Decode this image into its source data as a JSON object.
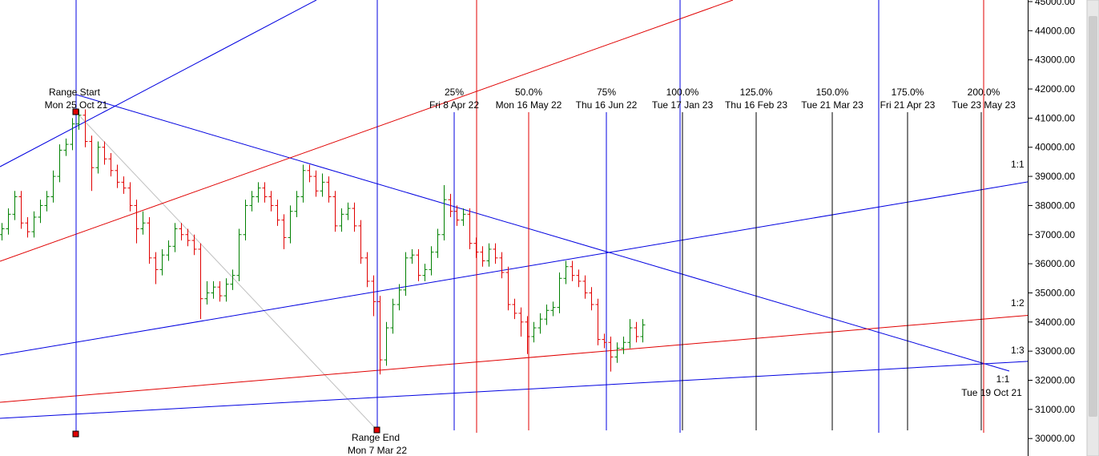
{
  "chart_data": {
    "type": "ohlc",
    "up_color": "#008000",
    "down_color": "#e00000",
    "ohlc": [
      [
        37000,
        37400,
        36800,
        37200
      ],
      [
        37200,
        37900,
        37000,
        37700
      ],
      [
        37700,
        38500,
        37500,
        38300
      ],
      [
        38300,
        38500,
        37200,
        37400
      ],
      [
        37400,
        37600,
        36900,
        37100
      ],
      [
        37100,
        37800,
        36900,
        37600
      ],
      [
        37600,
        38200,
        37400,
        38000
      ],
      [
        38000,
        38500,
        37800,
        38300
      ],
      [
        38300,
        39200,
        38100,
        39000
      ],
      [
        39000,
        40100,
        38800,
        39900
      ],
      [
        39900,
        40300,
        39700,
        40100
      ],
      [
        40100,
        41000,
        39900,
        40800
      ],
      [
        40800,
        41300,
        40600,
        41100
      ],
      [
        41100,
        41300,
        40000,
        40200
      ],
      [
        40200,
        40400,
        38500,
        39300
      ],
      [
        39300,
        40200,
        39100,
        40000
      ],
      [
        40000,
        40200,
        39400,
        39600
      ],
      [
        39600,
        39800,
        39000,
        39200
      ],
      [
        39200,
        39400,
        38600,
        38800
      ],
      [
        38800,
        39000,
        38400,
        38600
      ],
      [
        38600,
        38800,
        37800,
        38000
      ],
      [
        38000,
        38200,
        36700,
        37200
      ],
      [
        37200,
        37800,
        37000,
        37400
      ],
      [
        37400,
        37600,
        36000,
        36200
      ],
      [
        36200,
        36400,
        35300,
        35800
      ],
      [
        35800,
        36500,
        35600,
        36300
      ],
      [
        36300,
        36800,
        36100,
        36600
      ],
      [
        36600,
        37400,
        36400,
        37200
      ],
      [
        37200,
        37400,
        36800,
        37000
      ],
      [
        37000,
        37200,
        36600,
        36800
      ],
      [
        36800,
        37000,
        36300,
        36500
      ],
      [
        36500,
        36700,
        34100,
        34800
      ],
      [
        34800,
        35400,
        34600,
        35000
      ],
      [
        35000,
        35400,
        34800,
        35200
      ],
      [
        35200,
        35400,
        34700,
        34900
      ],
      [
        34900,
        35500,
        34700,
        35300
      ],
      [
        35300,
        35800,
        35100,
        35600
      ],
      [
        35600,
        37200,
        35400,
        37000
      ],
      [
        37000,
        38200,
        36800,
        38000
      ],
      [
        38000,
        38500,
        37800,
        38300
      ],
      [
        38300,
        38800,
        38100,
        38600
      ],
      [
        38600,
        38800,
        38100,
        38300
      ],
      [
        38300,
        38500,
        37800,
        38000
      ],
      [
        38000,
        38200,
        37300,
        37500
      ],
      [
        37500,
        37700,
        36500,
        36900
      ],
      [
        36900,
        38000,
        36700,
        37800
      ],
      [
        37800,
        38500,
        37600,
        38300
      ],
      [
        38300,
        39400,
        38100,
        39200
      ],
      [
        39200,
        39400,
        38800,
        39000
      ],
      [
        39000,
        39200,
        38300,
        38500
      ],
      [
        38500,
        39100,
        38300,
        38800
      ],
      [
        38800,
        39000,
        38100,
        38300
      ],
      [
        38300,
        38500,
        37100,
        37300
      ],
      [
        37300,
        37900,
        37100,
        37700
      ],
      [
        37700,
        38100,
        37500,
        37900
      ],
      [
        37900,
        38100,
        37100,
        37300
      ],
      [
        37300,
        37500,
        36000,
        36200
      ],
      [
        36200,
        36400,
        35200,
        35400
      ],
      [
        35400,
        35600,
        34200,
        34700
      ],
      [
        34700,
        34900,
        32200,
        32700
      ],
      [
        32700,
        34000,
        32500,
        33800
      ],
      [
        33800,
        34800,
        33600,
        34600
      ],
      [
        34600,
        35300,
        34400,
        35100
      ],
      [
        35100,
        36400,
        34900,
        36200
      ],
      [
        36200,
        36500,
        36000,
        36300
      ],
      [
        36300,
        36500,
        35400,
        35600
      ],
      [
        35600,
        36000,
        35400,
        35800
      ],
      [
        35800,
        36600,
        35600,
        36400
      ],
      [
        36400,
        37200,
        36200,
        37000
      ],
      [
        37000,
        38700,
        36800,
        38200
      ],
      [
        38200,
        38400,
        37600,
        37800
      ],
      [
        37800,
        38000,
        37300,
        37500
      ],
      [
        37500,
        37900,
        37300,
        37700
      ],
      [
        37700,
        37900,
        36500,
        36700
      ],
      [
        36700,
        36900,
        36200,
        36400
      ],
      [
        36400,
        36600,
        35900,
        36100
      ],
      [
        36100,
        36700,
        35900,
        36500
      ],
      [
        36500,
        36700,
        36000,
        36200
      ],
      [
        36200,
        36400,
        35500,
        35700
      ],
      [
        35700,
        35900,
        34400,
        34600
      ],
      [
        34600,
        34800,
        34100,
        34300
      ],
      [
        34300,
        34500,
        33500,
        34000
      ],
      [
        34000,
        34200,
        32900,
        33500
      ],
      [
        33500,
        34000,
        33300,
        33800
      ],
      [
        33800,
        34300,
        33600,
        34100
      ],
      [
        34100,
        34600,
        33900,
        34400
      ],
      [
        34400,
        34700,
        34200,
        34500
      ],
      [
        34500,
        35700,
        34300,
        35500
      ],
      [
        35500,
        36100,
        35300,
        35900
      ],
      [
        35900,
        36100,
        35400,
        35600
      ],
      [
        35600,
        35800,
        35200,
        35400
      ],
      [
        35400,
        35600,
        34800,
        35000
      ],
      [
        35000,
        35200,
        34400,
        34600
      ],
      [
        34600,
        34800,
        33200,
        33400
      ],
      [
        33400,
        33600,
        33100,
        33300
      ],
      [
        33300,
        33500,
        32300,
        32800
      ],
      [
        32800,
        33300,
        32600,
        33100
      ],
      [
        33100,
        33500,
        32900,
        33300
      ],
      [
        33300,
        34100,
        33100,
        33800
      ],
      [
        33800,
        34000,
        33300,
        33500
      ],
      [
        33500,
        34100,
        33300,
        33900
      ]
    ],
    "ylim": [
      29400,
      45055
    ],
    "yticks": [
      {
        "value": 30000,
        "label": "30000.00"
      },
      {
        "value": 31000,
        "label": "31000.00"
      },
      {
        "value": 32000,
        "label": "32000.00"
      },
      {
        "value": 33000,
        "label": "33000.00"
      },
      {
        "value": 34000,
        "label": "34000.00"
      },
      {
        "value": 35000,
        "label": "35000.00"
      },
      {
        "value": 36000,
        "label": "36000.00"
      },
      {
        "value": 37000,
        "label": "37000.00"
      },
      {
        "value": 38000,
        "label": "38000.00"
      },
      {
        "value": 39000,
        "label": "39000.00"
      },
      {
        "value": 40000,
        "label": "40000.00"
      },
      {
        "value": 41000,
        "label": "41000.00"
      },
      {
        "value": 42000,
        "label": "42000.00"
      },
      {
        "value": 43000,
        "label": "43000.00"
      },
      {
        "value": 44000,
        "label": "44000.00"
      },
      {
        "value": 45000,
        "label": "45000.00"
      }
    ],
    "range_start": {
      "label": "Range Start",
      "date": "Mon 25 Oct 21"
    },
    "range_end": {
      "label": "Range End",
      "date": "Mon 7 Mar 22"
    },
    "projections": [
      {
        "percent": "25%",
        "date": "Fri 8 Apr 22"
      },
      {
        "percent": "50.0%",
        "date": "Mon 16 May 22"
      },
      {
        "percent": "75%",
        "date": "Thu 16 Jun 22"
      },
      {
        "percent": "100.0%",
        "date": "Tue 17 Jan 23"
      },
      {
        "percent": "125.0%",
        "date": "Thu 16 Feb 23"
      },
      {
        "percent": "150.0%",
        "date": "Tue 21 Mar 23"
      },
      {
        "percent": "175.0%",
        "date": "Fri 21 Apr 23"
      },
      {
        "percent": "200.0%",
        "date": "Tue 23 May 23"
      }
    ],
    "ratios": [
      "1:1",
      "1:2",
      "1:3"
    ],
    "origin": {
      "label": "1:1",
      "date": "Tue 19 Oct 21"
    }
  }
}
